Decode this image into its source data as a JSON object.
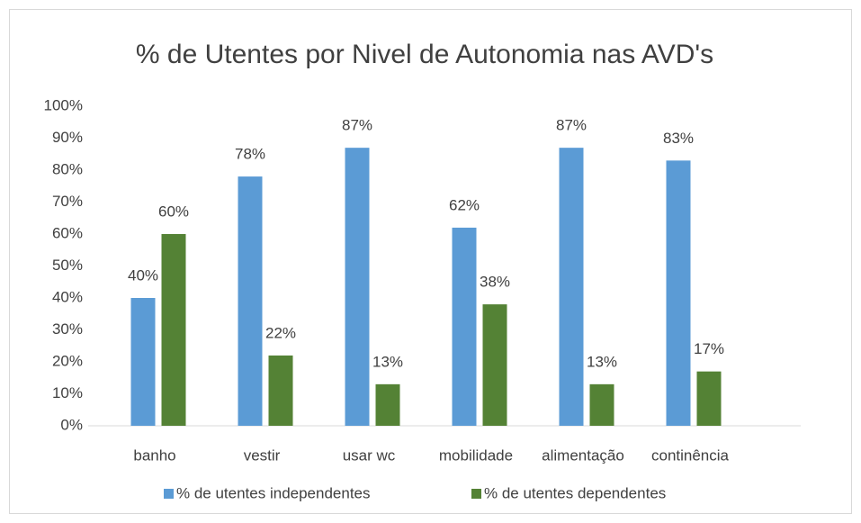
{
  "chart_data": {
    "type": "bar",
    "title": "% de Utentes por Nivel de Autonomia nas AVD's",
    "categories": [
      "banho",
      "vestir",
      "usar wc",
      "mobilidade",
      "alimentação",
      "continência"
    ],
    "series": [
      {
        "name": "% de utentes independentes",
        "color": "#5b9bd5",
        "values": [
          40,
          78,
          87,
          62,
          87,
          83
        ],
        "value_labels": [
          "40%",
          "78%",
          "87%",
          "62%",
          "87%",
          "83%"
        ]
      },
      {
        "name": "% de utentes dependentes",
        "color": "#548235",
        "values": [
          60,
          22,
          13,
          38,
          13,
          17
        ],
        "value_labels": [
          "60%",
          "22%",
          "13%",
          "38%",
          "13%",
          "17%"
        ]
      }
    ],
    "ylim": [
      0,
      100
    ],
    "yticks": [
      {
        "value": 0,
        "label": "0%"
      },
      {
        "value": 10,
        "label": "10%"
      },
      {
        "value": 20,
        "label": "20%"
      },
      {
        "value": 30,
        "label": "30%"
      },
      {
        "value": 40,
        "label": "40%"
      },
      {
        "value": 50,
        "label": "50%"
      },
      {
        "value": 60,
        "label": "60%"
      },
      {
        "value": 70,
        "label": "70%"
      },
      {
        "value": 80,
        "label": "80%"
      },
      {
        "value": 90,
        "label": "90%"
      },
      {
        "value": 100,
        "label": "100%"
      }
    ],
    "legend": "bottom"
  }
}
